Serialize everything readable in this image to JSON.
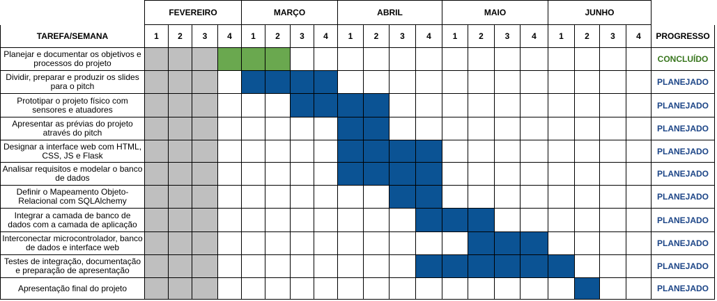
{
  "header": {
    "task_label": "TAREFA/SEMANA",
    "progress_label": "PROGRESSO"
  },
  "months": [
    {
      "name": "FEVEREIRO",
      "weeks": [
        "1",
        "2",
        "3",
        "4"
      ]
    },
    {
      "name": "MARÇO",
      "weeks": [
        "1",
        "2",
        "3",
        "4"
      ]
    },
    {
      "name": "ABRIL",
      "weeks": [
        "1",
        "2",
        "3",
        "4"
      ]
    },
    {
      "name": "MAIO",
      "weeks": [
        "1",
        "2",
        "3",
        "4"
      ]
    },
    {
      "name": "JUNHO",
      "weeks": [
        "1",
        "2",
        "3",
        "4"
      ]
    }
  ],
  "colors": {
    "past": "#bfbfbf",
    "done": "#6aa84f",
    "planned": "#0b5394",
    "status_done": "#38761d",
    "status_planned": "#1c4587",
    "grid": "#000000"
  },
  "past_weeks": 3,
  "tasks": [
    {
      "name": "Planejar e documentar os objetivos e processos do projeto",
      "start_week": 4,
      "end_week": 6,
      "status": "CONCLUÍDO",
      "state": "done"
    },
    {
      "name": "Dividir, preparar e produzir os slides para o pitch",
      "start_week": 5,
      "end_week": 8,
      "status": "PLANEJADO",
      "state": "planned"
    },
    {
      "name": "Prototipar o projeto físico com sensores e atuadores",
      "start_week": 7,
      "end_week": 10,
      "status": "PLANEJADO",
      "state": "planned"
    },
    {
      "name": "Apresentar as prévias do projeto através do pitch",
      "start_week": 9,
      "end_week": 10,
      "status": "PLANEJADO",
      "state": "planned"
    },
    {
      "name": "Designar a interface web com HTML, CSS, JS e Flask",
      "start_week": 9,
      "end_week": 12,
      "status": "PLANEJADO",
      "state": "planned"
    },
    {
      "name": "Analisar requisitos e modelar o banco de dados",
      "start_week": 9,
      "end_week": 12,
      "status": "PLANEJADO",
      "state": "planned"
    },
    {
      "name": "Definir o Mapeamento Objeto-Relacional com SQLAlchemy",
      "start_week": 11,
      "end_week": 12,
      "status": "PLANEJADO",
      "state": "planned"
    },
    {
      "name": "Integrar a camada de banco de dados com a camada de aplicação",
      "start_week": 12,
      "end_week": 14,
      "status": "PLANEJADO",
      "state": "planned"
    },
    {
      "name": "Interconectar microcontrolador, banco de dados e interface web",
      "start_week": 14,
      "end_week": 16,
      "status": "PLANEJADO",
      "state": "planned"
    },
    {
      "name": "Testes de integração, documentação e preparação de apresentação",
      "start_week": 12,
      "end_week": 17,
      "status": "PLANEJADO",
      "state": "planned"
    },
    {
      "name": "Apresentação final do projeto",
      "start_week": 18,
      "end_week": 18,
      "status": "PLANEJADO",
      "state": "planned"
    }
  ]
}
